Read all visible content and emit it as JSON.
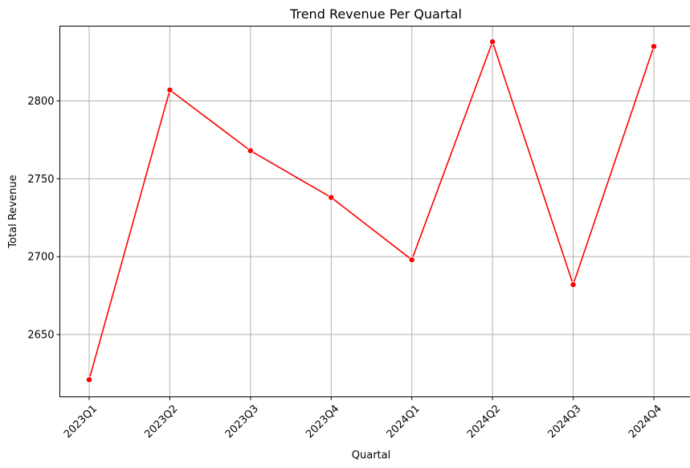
{
  "chart_data": {
    "type": "line",
    "title": "Trend Revenue Per Quartal",
    "xlabel": "Quartal",
    "ylabel": "Total Revenue",
    "categories": [
      "2023Q1",
      "2023Q2",
      "2023Q3",
      "2023Q4",
      "2024Q1",
      "2024Q2",
      "2024Q3",
      "2024Q4"
    ],
    "series": [
      {
        "values": [
          2621,
          2807,
          2768,
          2738,
          2698,
          2838,
          2682,
          2835
        ]
      }
    ],
    "yticks": [
      2650,
      2700,
      2750,
      2800
    ],
    "ylim": [
      2610,
      2848
    ],
    "grid": true,
    "line_color": "#ff0000",
    "marker": "circle"
  }
}
